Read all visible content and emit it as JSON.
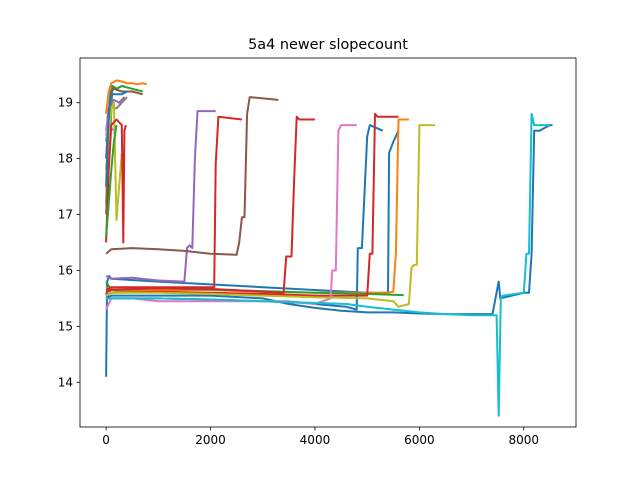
{
  "chart_data": {
    "type": "line",
    "title": "5a4 newer slopecount",
    "xlabel": "",
    "ylabel": "",
    "xlim": [
      -500,
      9000
    ],
    "ylim": [
      13.2,
      19.8
    ],
    "xticks": [
      0,
      2000,
      4000,
      6000,
      8000
    ],
    "yticks": [
      14,
      15,
      16,
      17,
      18,
      19
    ],
    "grid": false,
    "series": [
      {
        "color": "#1f77b4",
        "x": [
          0,
          20,
          60,
          100,
          1000,
          2000,
          3000,
          4000,
          5000,
          5200,
          5400,
          5420,
          5500,
          5600
        ],
        "y": [
          14.1,
          15.8,
          15.9,
          15.85,
          15.8,
          15.75,
          15.7,
          15.65,
          15.6,
          15.6,
          15.6,
          18.1,
          18.3,
          18.5
        ]
      },
      {
        "color": "#1f77b4",
        "x": [
          0,
          50,
          100,
          1000,
          2000,
          3000,
          3800,
          4000,
          4600,
          4800,
          4820,
          4900,
          5000,
          5050,
          5300
        ],
        "y": [
          15.6,
          15.5,
          15.5,
          15.5,
          15.48,
          15.45,
          15.42,
          15.4,
          15.35,
          15.3,
          16.4,
          16.4,
          18.4,
          18.6,
          18.5
        ]
      },
      {
        "color": "#1f77b4",
        "x": [
          0,
          100,
          1000,
          2000,
          3000,
          3500,
          4000,
          4500,
          5000,
          5500,
          6000,
          6500,
          7000,
          7400,
          7520,
          7550,
          8000,
          8100,
          8150,
          8200,
          8300,
          8500,
          8550
        ],
        "y": [
          15.5,
          15.55,
          15.55,
          15.55,
          15.5,
          15.4,
          15.33,
          15.28,
          15.25,
          15.25,
          15.23,
          15.22,
          15.22,
          15.22,
          15.8,
          15.5,
          15.6,
          15.6,
          16.3,
          18.5,
          18.5,
          18.6,
          18.6
        ]
      },
      {
        "color": "#ff7f0e",
        "x": [
          0,
          100,
          200,
          1000,
          2000,
          3000,
          4000,
          5000,
          5400,
          5500,
          5550,
          5600,
          5800
        ],
        "y": [
          15.7,
          15.6,
          15.62,
          15.65,
          15.65,
          15.62,
          15.6,
          15.6,
          15.6,
          15.62,
          16.3,
          18.7,
          18.7
        ]
      },
      {
        "color": "#2ca02c",
        "x": [
          0,
          100,
          200,
          1000,
          2000,
          3000,
          4000,
          5000,
          5700
        ],
        "y": [
          15.8,
          15.65,
          15.65,
          15.68,
          15.66,
          15.63,
          15.6,
          15.58,
          15.56
        ]
      },
      {
        "color": "#d62728",
        "x": [
          0,
          100,
          1000,
          2000,
          2070,
          2100,
          2150,
          2600
        ],
        "y": [
          15.65,
          15.7,
          15.7,
          15.7,
          15.7,
          17.9,
          18.75,
          18.7
        ]
      },
      {
        "color": "#d62728",
        "x": [
          0,
          100,
          1000,
          2000,
          3000,
          3400,
          3450,
          3550,
          3600,
          3650,
          3700,
          4000
        ],
        "y": [
          15.6,
          15.66,
          15.68,
          15.67,
          15.62,
          15.6,
          16.25,
          16.25,
          17.6,
          18.75,
          18.7,
          18.7
        ]
      },
      {
        "color": "#d62728",
        "x": [
          0,
          100,
          1000,
          2000,
          3000,
          4000,
          5000,
          5050,
          5100,
          5150,
          5200,
          5600
        ],
        "y": [
          15.55,
          15.6,
          15.62,
          15.6,
          15.58,
          15.55,
          15.55,
          16.3,
          16.3,
          18.8,
          18.75,
          18.75
        ]
      },
      {
        "color": "#9467bd",
        "x": [
          0,
          100,
          500,
          1000,
          1500,
          1550,
          1600,
          1650,
          1700,
          1750,
          2100
        ],
        "y": [
          15.9,
          15.85,
          15.87,
          15.82,
          15.8,
          16.4,
          16.45,
          16.4,
          18.0,
          18.85,
          18.85
        ]
      },
      {
        "color": "#8c564b",
        "x": [
          0,
          100,
          500,
          1000,
          1500,
          2000,
          2500,
          2550,
          2600,
          2650,
          2700,
          2750,
          3300
        ],
        "y": [
          16.3,
          16.38,
          16.4,
          16.38,
          16.35,
          16.3,
          16.28,
          16.5,
          16.95,
          16.95,
          18.8,
          19.1,
          19.05
        ]
      },
      {
        "color": "#e377c2",
        "x": [
          0,
          100,
          500,
          1000,
          1500,
          2000,
          2500,
          3000,
          3500,
          4000,
          4300,
          4330,
          4400,
          4450,
          4500,
          4550,
          4800
        ],
        "y": [
          15.3,
          15.5,
          15.5,
          15.45,
          15.45,
          15.45,
          15.45,
          15.45,
          15.45,
          15.4,
          15.5,
          16.0,
          16.0,
          18.5,
          18.6,
          18.6,
          18.6
        ]
      },
      {
        "color": "#bcbd22",
        "x": [
          0,
          100,
          1000,
          2000,
          3000,
          4000,
          5000,
          5500,
          5600,
          5800,
          5850,
          5900,
          5950,
          6000,
          6300
        ],
        "y": [
          15.55,
          15.6,
          15.6,
          15.58,
          15.55,
          15.52,
          15.5,
          15.45,
          15.35,
          15.4,
          16.05,
          16.1,
          16.1,
          18.6,
          18.6
        ]
      },
      {
        "color": "#17becf",
        "x": [
          0,
          100,
          1000,
          2000,
          3000,
          4000,
          4600,
          5000,
          5500,
          6000,
          6500,
          7000,
          7400,
          7480,
          7520,
          7560,
          7600,
          8000,
          8050,
          8100,
          8150,
          8200,
          8500
        ],
        "y": [
          15.5,
          15.5,
          15.5,
          15.48,
          15.45,
          15.42,
          15.4,
          15.35,
          15.3,
          15.25,
          15.22,
          15.2,
          15.2,
          15.2,
          13.4,
          15.5,
          15.55,
          15.6,
          16.3,
          16.3,
          18.8,
          18.6,
          18.6
        ]
      },
      {
        "color": "#7f7f7f",
        "x": [
          0,
          30,
          60,
          100,
          150,
          200,
          250,
          300,
          400
        ],
        "y": [
          17.0,
          18.4,
          18.8,
          19.0,
          18.9,
          18.9,
          18.95,
          19.0,
          19.1
        ]
      },
      {
        "color": "#17becf",
        "x": [
          0,
          40,
          80,
          120,
          200,
          300,
          350
        ],
        "y": [
          18.3,
          18.6,
          19.2,
          19.3,
          19.25,
          19.3,
          19.3
        ]
      },
      {
        "color": "#ff7f0e",
        "x": [
          0,
          50,
          100,
          200,
          300,
          400,
          500,
          600,
          700,
          780
        ],
        "y": [
          18.8,
          19.2,
          19.35,
          19.4,
          19.38,
          19.35,
          19.35,
          19.33,
          19.35,
          19.33
        ]
      },
      {
        "color": "#2ca02c",
        "x": [
          0,
          60,
          120,
          200,
          300,
          500,
          700
        ],
        "y": [
          17.2,
          18.0,
          19.3,
          19.25,
          19.3,
          19.25,
          19.2
        ]
      },
      {
        "color": "#bcbd22",
        "x": [
          0,
          50,
          100,
          150,
          200,
          300
        ],
        "y": [
          17.8,
          18.4,
          18.9,
          19.0,
          16.9,
          18.1
        ]
      },
      {
        "color": "#9467bd",
        "x": [
          0,
          50,
          100,
          150,
          250,
          350
        ],
        "y": [
          18.5,
          18.9,
          19.0,
          19.05,
          19.0,
          19.1
        ]
      },
      {
        "color": "#8c564b",
        "x": [
          0,
          60,
          100,
          150,
          300,
          500,
          700
        ],
        "y": [
          18.0,
          18.9,
          19.2,
          19.25,
          19.2,
          19.2,
          19.15
        ]
      },
      {
        "color": "#e377c2",
        "x": [
          0,
          30,
          60,
          100,
          150
        ],
        "y": [
          18.4,
          18.7,
          18.6,
          18.55,
          18.5
        ]
      },
      {
        "color": "#d62728",
        "x": [
          0,
          50,
          100,
          200,
          300,
          330,
          350,
          380
        ],
        "y": [
          16.5,
          17.8,
          18.6,
          18.7,
          18.6,
          16.5,
          18.5,
          18.6
        ]
      },
      {
        "color": "#1f77b4",
        "x": [
          0,
          40,
          80,
          120,
          200,
          300,
          400
        ],
        "y": [
          17.5,
          18.6,
          19.1,
          19.15,
          19.15,
          19.15,
          19.2
        ]
      },
      {
        "color": "#2ca02c",
        "x": [
          0,
          50,
          100,
          150,
          200
        ],
        "y": [
          16.6,
          17.2,
          17.8,
          18.3,
          18.6
        ]
      }
    ]
  }
}
